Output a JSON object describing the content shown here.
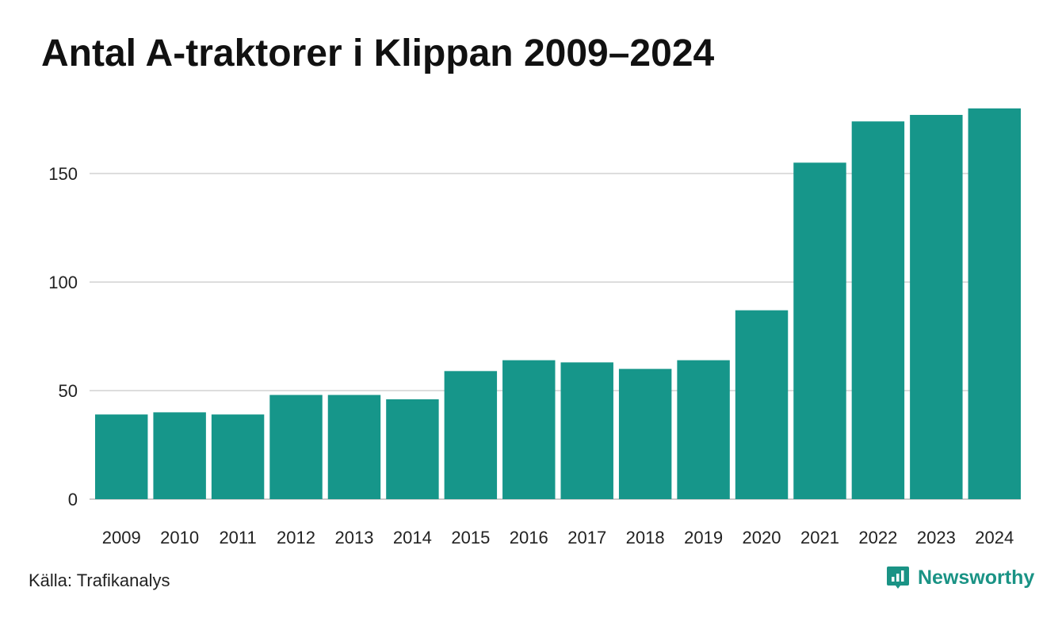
{
  "title": "Antal A-traktorer i Klippan 2009–2024",
  "source": "Källa: Trafikanalys",
  "brand": {
    "name": "Newsworthy",
    "icon": "newsworthy-logo-icon",
    "color": "#1a9385"
  },
  "colors": {
    "bar": "#16968a",
    "grid": "#dddddd",
    "axis": "#cccccc"
  },
  "chart_data": {
    "type": "bar",
    "title": "Antal A-traktorer i Klippan 2009–2024",
    "xlabel": "",
    "ylabel": "",
    "categories": [
      "2009",
      "2010",
      "2011",
      "2012",
      "2013",
      "2014",
      "2015",
      "2016",
      "2017",
      "2018",
      "2019",
      "2020",
      "2021",
      "2022",
      "2023",
      "2024"
    ],
    "values": [
      39,
      40,
      39,
      48,
      48,
      46,
      59,
      64,
      63,
      60,
      64,
      87,
      155,
      174,
      177,
      180
    ],
    "yticks": [
      0,
      50,
      100,
      150
    ],
    "ylim": [
      0,
      180
    ],
    "grid": true,
    "legend": "none"
  }
}
